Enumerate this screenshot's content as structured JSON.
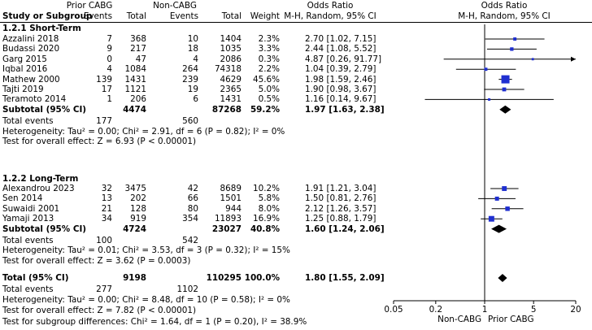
{
  "header": {
    "group1": "Prior CABG",
    "group2": "Non-CABG",
    "col_study": "Study or Subgroup",
    "col_events1": "Events",
    "col_total1": "Total",
    "col_events2": "Events",
    "col_total2": "Total",
    "col_weight": "Weight",
    "col_or_title": "Odds Ratio",
    "col_or_method": "M-H, Random, 95% CI",
    "plot_title": "Odds Ratio",
    "plot_method": "M-H, Random, 95% CI"
  },
  "subgroups": [
    {
      "title": "1.2.1 Short-Term",
      "studies": [
        {
          "name": "Azzalini 2018",
          "e1": "7",
          "t1": "368",
          "e2": "10",
          "t2": "1404",
          "weight": "2.3%",
          "ci_text": "2.70 [1.02, 7.15]"
        },
        {
          "name": "Budassi 2020",
          "e1": "9",
          "t1": "217",
          "e2": "18",
          "t2": "1035",
          "weight": "3.3%",
          "ci_text": "2.44 [1.08, 5.52]"
        },
        {
          "name": "Garg 2015",
          "e1": "0",
          "t1": "47",
          "e2": "4",
          "t2": "2086",
          "weight": "0.3%",
          "ci_text": "4.87 [0.26, 91.77]"
        },
        {
          "name": "Iqbal 2016",
          "e1": "4",
          "t1": "1084",
          "e2": "264",
          "t2": "74318",
          "weight": "2.2%",
          "ci_text": "1.04 [0.39, 2.79]"
        },
        {
          "name": "Mathew 2000",
          "e1": "139",
          "t1": "1431",
          "e2": "239",
          "t2": "4629",
          "weight": "45.6%",
          "ci_text": "1.98 [1.59, 2.46]"
        },
        {
          "name": "Tajti 2019",
          "e1": "17",
          "t1": "1121",
          "e2": "19",
          "t2": "2365",
          "weight": "5.0%",
          "ci_text": "1.90 [0.98, 3.67]"
        },
        {
          "name": "Teramoto 2014",
          "e1": "1",
          "t1": "206",
          "e2": "6",
          "t2": "1431",
          "weight": "0.5%",
          "ci_text": "1.16 [0.14, 9.67]"
        }
      ],
      "subtotal": {
        "label": "Subtotal (95% CI)",
        "t1": "4474",
        "t2": "87268",
        "weight": "59.2%",
        "ci_text": "1.97 [1.63, 2.38]"
      },
      "total_events": {
        "label": "Total events",
        "e1": "177",
        "e2": "560"
      },
      "heterogeneity": "Heterogeneity: Tau² = 0.00; Chi² = 2.91, df = 6 (P = 0.82); I² = 0%",
      "overall_effect": "Test for overall effect: Z = 6.93 (P < 0.00001)"
    },
    {
      "title": "1.2.2 Long-Term",
      "studies": [
        {
          "name": "Alexandrou 2023",
          "e1": "32",
          "t1": "3475",
          "e2": "42",
          "t2": "8689",
          "weight": "10.2%",
          "ci_text": "1.91 [1.21, 3.04]"
        },
        {
          "name": "Sen 2014",
          "e1": "13",
          "t1": "202",
          "e2": "66",
          "t2": "1501",
          "weight": "5.8%",
          "ci_text": "1.50 [0.81, 2.76]"
        },
        {
          "name": "Suwaidi 2001",
          "e1": "21",
          "t1": "128",
          "e2": "80",
          "t2": "944",
          "weight": "8.0%",
          "ci_text": "2.12 [1.26, 3.57]"
        },
        {
          "name": "Yamaji 2013",
          "e1": "34",
          "t1": "919",
          "e2": "354",
          "t2": "11893",
          "weight": "16.9%",
          "ci_text": "1.25 [0.88, 1.79]"
        }
      ],
      "subtotal": {
        "label": "Subtotal (95% CI)",
        "t1": "4724",
        "t2": "23027",
        "weight": "40.8%",
        "ci_text": "1.60 [1.24, 2.06]"
      },
      "total_events": {
        "label": "Total events",
        "e1": "100",
        "e2": "542"
      },
      "heterogeneity": "Heterogeneity: Tau² = 0.01; Chi² = 3.53, df = 3 (P = 0.32); I² = 15%",
      "overall_effect": "Test for overall effect: Z = 3.62 (P = 0.0003)"
    }
  ],
  "overall": {
    "label": "Total (95% CI)",
    "t1": "9198",
    "t2": "110295",
    "weight": "100.0%",
    "ci_text": "1.80 [1.55, 2.09]",
    "total_events": {
      "label": "Total events",
      "e1": "277",
      "e2": "1102"
    },
    "heterogeneity": "Heterogeneity: Tau² = 0.00; Chi² = 8.48, df = 10 (P = 0.58); I² = 0%",
    "overall_effect": "Test for overall effect: Z = 7.82 (P < 0.00001)",
    "subgroup_diff": "Test for subgroup differences: Chi² = 1.64, df = 1 (P = 0.20), I² = 38.9%"
  },
  "axis": {
    "ticks": [
      "0.05",
      "0.2",
      "1",
      "5",
      "20"
    ],
    "favours_left": "Non-CABG",
    "favours_right": "Prior CABG"
  },
  "colors": {
    "square": "#1f2fd0",
    "diamond": "#000000",
    "line": "#000000"
  },
  "chart_data": {
    "type": "forest",
    "scale": "log",
    "xlim": [
      0.05,
      20
    ],
    "xticks": [
      0.05,
      0.2,
      1,
      5,
      20
    ],
    "studies": [
      {
        "name": "Azzalini 2018",
        "or": 2.7,
        "lo": 1.02,
        "hi": 7.15,
        "weight": 2.3
      },
      {
        "name": "Budassi 2020",
        "or": 2.44,
        "lo": 1.08,
        "hi": 5.52,
        "weight": 3.3
      },
      {
        "name": "Garg 2015",
        "or": 4.87,
        "lo": 0.26,
        "hi": 91.77,
        "weight": 0.3
      },
      {
        "name": "Iqbal 2016",
        "or": 1.04,
        "lo": 0.39,
        "hi": 2.79,
        "weight": 2.2
      },
      {
        "name": "Mathew 2000",
        "or": 1.98,
        "lo": 1.59,
        "hi": 2.46,
        "weight": 45.6
      },
      {
        "name": "Tajti 2019",
        "or": 1.9,
        "lo": 0.98,
        "hi": 3.67,
        "weight": 5.0
      },
      {
        "name": "Teramoto 2014",
        "or": 1.16,
        "lo": 0.14,
        "hi": 9.67,
        "weight": 0.5
      },
      {
        "name": "Alexandrou 2023",
        "or": 1.91,
        "lo": 1.21,
        "hi": 3.04,
        "weight": 10.2
      },
      {
        "name": "Sen 2014",
        "or": 1.5,
        "lo": 0.81,
        "hi": 2.76,
        "weight": 5.8
      },
      {
        "name": "Suwaidi 2001",
        "or": 2.12,
        "lo": 1.26,
        "hi": 3.57,
        "weight": 8.0
      },
      {
        "name": "Yamaji 2013",
        "or": 1.25,
        "lo": 0.88,
        "hi": 1.79,
        "weight": 16.9
      }
    ],
    "pooled": [
      {
        "name": "Subtotal (95% CI) Short-Term",
        "or": 1.97,
        "lo": 1.63,
        "hi": 2.38
      },
      {
        "name": "Subtotal (95% CI) Long-Term",
        "or": 1.6,
        "lo": 1.24,
        "hi": 2.06
      },
      {
        "name": "Total (95% CI)",
        "or": 1.8,
        "lo": 1.55,
        "hi": 2.09
      }
    ]
  }
}
